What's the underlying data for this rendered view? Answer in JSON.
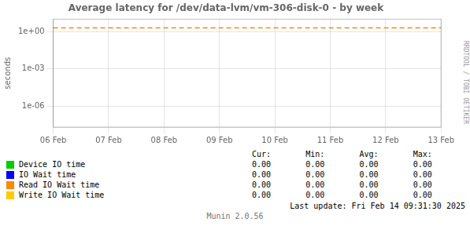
{
  "chart_data": {
    "type": "line",
    "title": "Average latency for /dev/data-lvm/vm-306-disk-0 - by week",
    "y_label": "seconds",
    "categories": [
      "06 Feb",
      "07 Feb",
      "08 Feb",
      "09 Feb",
      "10 Feb",
      "11 Feb",
      "12 Feb",
      "13 Feb"
    ],
    "log": "y",
    "ylim": [
      2e-08,
      10
    ],
    "yticks": [
      {
        "value": 1e-06,
        "label": "1e-06"
      },
      {
        "value": 0.001,
        "label": "1e-03"
      },
      {
        "value": 1,
        "label": "1e+00"
      }
    ],
    "grid": true,
    "legend": "bottom",
    "stat_names": [
      "Cur:",
      "Min:",
      "Avg:",
      "Max:"
    ],
    "series": [
      {
        "name": "Device IO time",
        "color": "#00cc00",
        "values": [
          null,
          null,
          null,
          null,
          null,
          null,
          null,
          null
        ],
        "stats": [
          0,
          0,
          0,
          0
        ],
        "stat_labels": [
          "0.00",
          "0.00",
          "0.00",
          "0.00"
        ]
      },
      {
        "name": "IO Wait time",
        "color": "#0000ff",
        "values": [
          null,
          null,
          null,
          null,
          null,
          null,
          null,
          null
        ],
        "stats": [
          0,
          0,
          0,
          0
        ],
        "stat_labels": [
          "0.00",
          "0.00",
          "0.00",
          "0.00"
        ]
      },
      {
        "name": "Read IO Wait time",
        "color": "#ff8800",
        "values": [
          null,
          null,
          null,
          null,
          null,
          null,
          null,
          null
        ],
        "stats": [
          0,
          0,
          0,
          0
        ],
        "stat_labels": [
          "0.00",
          "0.00",
          "0.00",
          "0.00"
        ]
      },
      {
        "name": "Write IO Wait time",
        "color": "#ffcc00",
        "values": [
          null,
          null,
          null,
          null,
          null,
          null,
          null,
          null
        ],
        "stats": [
          0,
          0,
          0,
          0
        ],
        "stat_labels": [
          "0.00",
          "0.00",
          "0.00",
          "0.00"
        ]
      }
    ],
    "reference_lines": [
      {
        "y": 2.0,
        "color": "#ff8800",
        "line_style": "dashed"
      }
    ],
    "footer": "Last update: Fri Feb 14 09:31:30 2025",
    "watermark": "Munin 2.0.56",
    "side_label": "RRDTOOL / TOBI OETIKER"
  }
}
